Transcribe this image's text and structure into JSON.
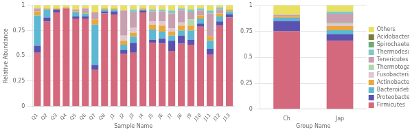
{
  "chart_data": [
    {
      "type": "bar",
      "stacked": true,
      "categories": [
        "Q1",
        "Q2",
        "Q3",
        "Q4",
        "Q5",
        "Q6",
        "Q7",
        "Q8",
        "J1",
        "J2",
        "J3",
        "J4",
        "J5",
        "J6",
        "J7",
        "J8",
        "J9",
        "J10",
        "J11",
        "J12",
        "J13"
      ],
      "series": [
        {
          "name": "Firmicutes",
          "color": "#d4687c",
          "values": [
            0.53,
            0.84,
            0.93,
            0.97,
            0.87,
            0.87,
            0.36,
            0.92,
            0.91,
            0.52,
            0.53,
            0.93,
            0.63,
            0.62,
            0.55,
            0.62,
            0.61,
            0.79,
            0.51,
            0.8,
            0.88
          ]
        },
        {
          "name": "Proteobacteria",
          "color": "#5b52b0",
          "values": [
            0.07,
            0.04,
            0.03,
            0.0,
            0.02,
            0.02,
            0.05,
            0.02,
            0.03,
            0.04,
            0.1,
            0.02,
            0.03,
            0.05,
            0.1,
            0.08,
            0.05,
            0.03,
            0.06,
            0.04,
            0.03
          ]
        },
        {
          "name": "Bacteroidetes",
          "color": "#5db8d4",
          "values": [
            0.3,
            0.08,
            0.0,
            0.0,
            0.04,
            0.03,
            0.4,
            0.02,
            0.02,
            0.05,
            0.06,
            0.01,
            0.1,
            0.07,
            0.05,
            0.05,
            0.09,
            0.05,
            0.08,
            0.05,
            0.03
          ]
        },
        {
          "name": "Actinobacteria",
          "color": "#e8a83c",
          "values": [
            0.04,
            0.01,
            0.01,
            0.01,
            0.01,
            0.01,
            0.05,
            0.01,
            0.01,
            0.04,
            0.04,
            0.01,
            0.05,
            0.06,
            0.04,
            0.05,
            0.05,
            0.03,
            0.04,
            0.03,
            0.02
          ]
        },
        {
          "name": "Fusobacteria",
          "color": "#e0c8d0",
          "values": [
            0.0,
            0.0,
            0.0,
            0.0,
            0.0,
            0.0,
            0.0,
            0.0,
            0.0,
            0.05,
            0.05,
            0.0,
            0.03,
            0.04,
            0.03,
            0.03,
            0.0,
            0.0,
            0.0,
            0.0,
            0.0
          ]
        },
        {
          "name": "Thermotogae",
          "color": "#b0d8b0",
          "values": [
            0.0,
            0.0,
            0.0,
            0.0,
            0.0,
            0.0,
            0.0,
            0.0,
            0.0,
            0.0,
            0.0,
            0.0,
            0.0,
            0.0,
            0.0,
            0.0,
            0.06,
            0.0,
            0.0,
            0.0,
            0.0
          ]
        },
        {
          "name": "Tenericutes",
          "color": "#c8a0b0",
          "values": [
            0.03,
            0.0,
            0.0,
            0.0,
            0.02,
            0.04,
            0.07,
            0.0,
            0.0,
            0.25,
            0.15,
            0.0,
            0.1,
            0.1,
            0.15,
            0.12,
            0.07,
            0.05,
            0.23,
            0.04,
            0.0
          ]
        },
        {
          "name": "Thermodesulfobacteria",
          "color": "#80c8c8",
          "values": [
            0.0,
            0.0,
            0.0,
            0.0,
            0.0,
            0.0,
            0.0,
            0.0,
            0.0,
            0.0,
            0.03,
            0.0,
            0.02,
            0.02,
            0.03,
            0.02,
            0.03,
            0.02,
            0.03,
            0.02,
            0.0
          ]
        },
        {
          "name": "Spirochaetes",
          "color": "#70aa70",
          "values": [
            0.0,
            0.0,
            0.0,
            0.0,
            0.0,
            0.0,
            0.0,
            0.0,
            0.0,
            0.0,
            0.0,
            0.0,
            0.0,
            0.0,
            0.0,
            0.0,
            0.0,
            0.0,
            0.0,
            0.0,
            0.0
          ]
        },
        {
          "name": "Acidobacteria",
          "color": "#7b7b40",
          "values": [
            0.0,
            0.0,
            0.0,
            0.0,
            0.0,
            0.0,
            0.0,
            0.0,
            0.0,
            0.0,
            0.0,
            0.0,
            0.0,
            0.0,
            0.0,
            0.0,
            0.0,
            0.0,
            0.0,
            0.0,
            0.0
          ]
        },
        {
          "name": "Others",
          "color": "#e8e060",
          "values": [
            0.03,
            0.03,
            0.03,
            0.02,
            0.04,
            0.03,
            0.07,
            0.03,
            0.03,
            0.05,
            0.04,
            0.03,
            0.04,
            0.04,
            0.05,
            0.03,
            0.04,
            0.03,
            0.05,
            0.02,
            0.04
          ]
        }
      ],
      "xlabel": "Sample Name",
      "ylabel": "Relative Abundance",
      "ylim": [
        0,
        1.0
      ],
      "yticks": [
        0,
        0.25,
        0.5,
        0.75,
        1
      ],
      "grid": true
    },
    {
      "type": "bar",
      "stacked": true,
      "categories": [
        "Ch",
        "Jap"
      ],
      "series": [
        {
          "name": "Firmicutes",
          "color": "#d4687c",
          "values": [
            0.75,
            0.66
          ]
        },
        {
          "name": "Proteobacteria",
          "color": "#5b52b0",
          "values": [
            0.1,
            0.06
          ]
        },
        {
          "name": "Bacteroidetes",
          "color": "#5db8d4",
          "values": [
            0.03,
            0.04
          ]
        },
        {
          "name": "Actinobacteria",
          "color": "#e8a83c",
          "values": [
            0.01,
            0.04
          ]
        },
        {
          "name": "Fusobacteria",
          "color": "#e0c8d0",
          "values": [
            0.0,
            0.02
          ]
        },
        {
          "name": "Thermotogae",
          "color": "#b0d8b0",
          "values": [
            0.0,
            0.01
          ]
        },
        {
          "name": "Tenericutes",
          "color": "#c8a0b0",
          "values": [
            0.02,
            0.09
          ]
        },
        {
          "name": "Thermodesulfobacteria",
          "color": "#80c8c8",
          "values": [
            0.0,
            0.02
          ]
        },
        {
          "name": "Spirochaetes",
          "color": "#70aa70",
          "values": [
            0.0,
            0.0
          ]
        },
        {
          "name": "Acidobacteria",
          "color": "#7b7b40",
          "values": [
            0.0,
            0.0
          ]
        },
        {
          "name": "Others",
          "color": "#e8e060",
          "values": [
            0.09,
            0.06
          ]
        }
      ],
      "xlabel": "Group Name",
      "ylim": [
        0,
        1.0
      ],
      "yticks": [
        0,
        0.25,
        0.5,
        0.75,
        1
      ],
      "grid": true,
      "legend": "right"
    }
  ]
}
